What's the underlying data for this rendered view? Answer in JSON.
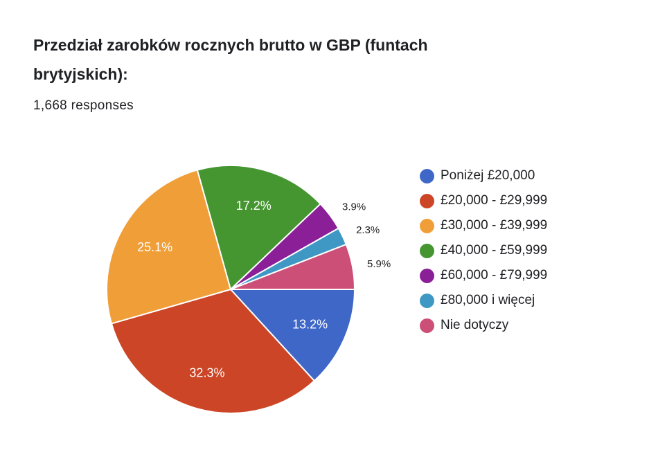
{
  "title": "Przedział zarobków rocznych brutto w GBP (funtach brytyjskich):",
  "responses": "1,668 responses",
  "chart_data": {
    "type": "pie",
    "title": "Przedział zarobków rocznych brutto w GBP (funtach brytyjskich):",
    "legend_position": "right",
    "categories": [
      "Poniżej £20,000",
      "£20,000 - £29,999",
      "£30,000 - £39,999",
      "£40,000 - £59,999",
      "£60,000 - £79,999",
      "£80,000 i więcej",
      "Nie dotyczy"
    ],
    "values": [
      13.2,
      32.3,
      25.1,
      17.2,
      3.9,
      2.3,
      5.9
    ],
    "labels": [
      "13.2%",
      "32.3%",
      "25.1%",
      "17.2%",
      "3.9%",
      "2.3%",
      "5.9%"
    ],
    "colors": [
      "#3f67c8",
      "#cc4526",
      "#f09e38",
      "#459531",
      "#8b1f98",
      "#3f98c3",
      "#cc4f78"
    ]
  }
}
